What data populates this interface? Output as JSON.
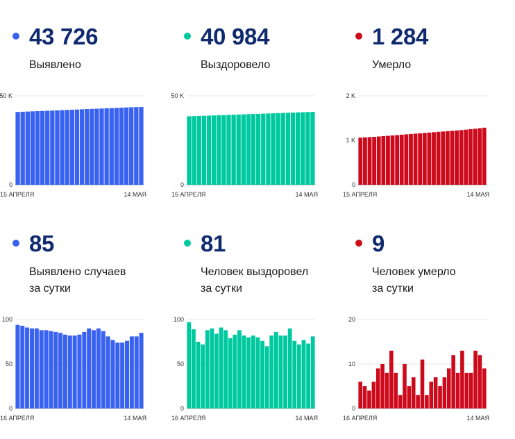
{
  "panels": [
    {
      "value": "43 726",
      "label_lines": [
        "Выявлено"
      ],
      "color": "#3a62f0",
      "chart_data": {
        "type": "bar",
        "ylim": [
          0,
          50000
        ],
        "yticks": [
          {
            "v": 0,
            "label": "0"
          },
          {
            "v": 50000,
            "label": "50 K"
          }
        ],
        "x_start_label": "15 АПРЕЛЯ",
        "x_end_label": "14 МАЯ",
        "values": [
          40942,
          41057,
          41172,
          41286,
          41401,
          41516,
          41631,
          41746,
          41860,
          41975,
          42090,
          42205,
          42320,
          42434,
          42549,
          42664,
          42779,
          42894,
          43009,
          43123,
          43238,
          43353,
          43468,
          43583,
          43697,
          43726
        ]
      }
    },
    {
      "value": "40 984",
      "label_lines": [
        "Выздоровело"
      ],
      "color": "#00c9a0",
      "chart_data": {
        "type": "bar",
        "ylim": [
          0,
          50000
        ],
        "yticks": [
          {
            "v": 0,
            "label": "0"
          },
          {
            "v": 50000,
            "label": "50 K"
          }
        ],
        "x_start_label": "15 АПРЕЛЯ",
        "x_end_label": "14 МАЯ",
        "values": [
          38500,
          38600,
          38700,
          38800,
          38900,
          39000,
          39100,
          39200,
          39300,
          39400,
          39500,
          39600,
          39700,
          39800,
          39900,
          40000,
          40100,
          40200,
          40300,
          40400,
          40500,
          40600,
          40700,
          40800,
          40900,
          40984
        ]
      }
    },
    {
      "value": "1 284",
      "label_lines": [
        "Умерло"
      ],
      "color": "#cc0a1c",
      "chart_data": {
        "type": "bar",
        "ylim": [
          0,
          2000
        ],
        "yticks": [
          {
            "v": 0,
            "label": "0"
          },
          {
            "v": 1000,
            "label": "1 K"
          },
          {
            "v": 2000,
            "label": "2 K"
          }
        ],
        "x_start_label": "15 АПРЕЛЯ",
        "x_end_label": "14 МАЯ",
        "values": [
          1060,
          1066,
          1072,
          1078,
          1086,
          1094,
          1102,
          1110,
          1118,
          1126,
          1134,
          1142,
          1150,
          1158,
          1166,
          1174,
          1182,
          1190,
          1198,
          1206,
          1214,
          1222,
          1230,
          1240,
          1250,
          1260,
          1272,
          1284
        ]
      }
    },
    {
      "value": "85",
      "label_lines": [
        "Выявлено случаев",
        "за сутки"
      ],
      "color": "#3a62f0",
      "chart_data": {
        "type": "bar",
        "ylim": [
          0,
          100
        ],
        "yticks": [
          {
            "v": 0,
            "label": "0"
          },
          {
            "v": 50,
            "label": "50"
          },
          {
            "v": 100,
            "label": "100"
          }
        ],
        "x_start_label": "16 АПРЕЛЯ",
        "x_end_label": "14 МАЯ",
        "values": [
          94,
          93,
          91,
          90,
          90,
          88,
          88,
          87,
          86,
          85,
          83,
          82,
          82,
          83,
          86,
          90,
          88,
          90,
          87,
          81,
          77,
          74,
          74,
          76,
          81,
          81,
          85
        ]
      }
    },
    {
      "value": "81",
      "label_lines": [
        "Человек выздоровел",
        "за сутки"
      ],
      "color": "#00c9a0",
      "chart_data": {
        "type": "bar",
        "ylim": [
          0,
          100
        ],
        "yticks": [
          {
            "v": 0,
            "label": "0"
          },
          {
            "v": 50,
            "label": "50"
          },
          {
            "v": 100,
            "label": "100"
          }
        ],
        "x_start_label": "16 АПРЕЛЯ",
        "x_end_label": "14 МАЯ",
        "values": [
          97,
          89,
          75,
          72,
          88,
          90,
          84,
          91,
          88,
          79,
          83,
          88,
          82,
          80,
          82,
          80,
          76,
          70,
          82,
          86,
          82,
          82,
          90,
          76,
          72,
          77,
          73,
          81
        ]
      }
    },
    {
      "value": "9",
      "label_lines": [
        "Человек умерло",
        "за сутки"
      ],
      "color": "#cc0a1c",
      "chart_data": {
        "type": "bar",
        "ylim": [
          0,
          20
        ],
        "yticks": [
          {
            "v": 0,
            "label": "0"
          },
          {
            "v": 10,
            "label": "10"
          },
          {
            "v": 20,
            "label": "20"
          }
        ],
        "x_start_label": "16 АПРЕЛЯ",
        "x_end_label": "14 МАЯ",
        "values": [
          6,
          5,
          4,
          6,
          9,
          10,
          8,
          13,
          8,
          3,
          10,
          5,
          7,
          3,
          11,
          3,
          6,
          7,
          5,
          7,
          9,
          12,
          8,
          13,
          8,
          8,
          13,
          12,
          9
        ]
      }
    }
  ]
}
